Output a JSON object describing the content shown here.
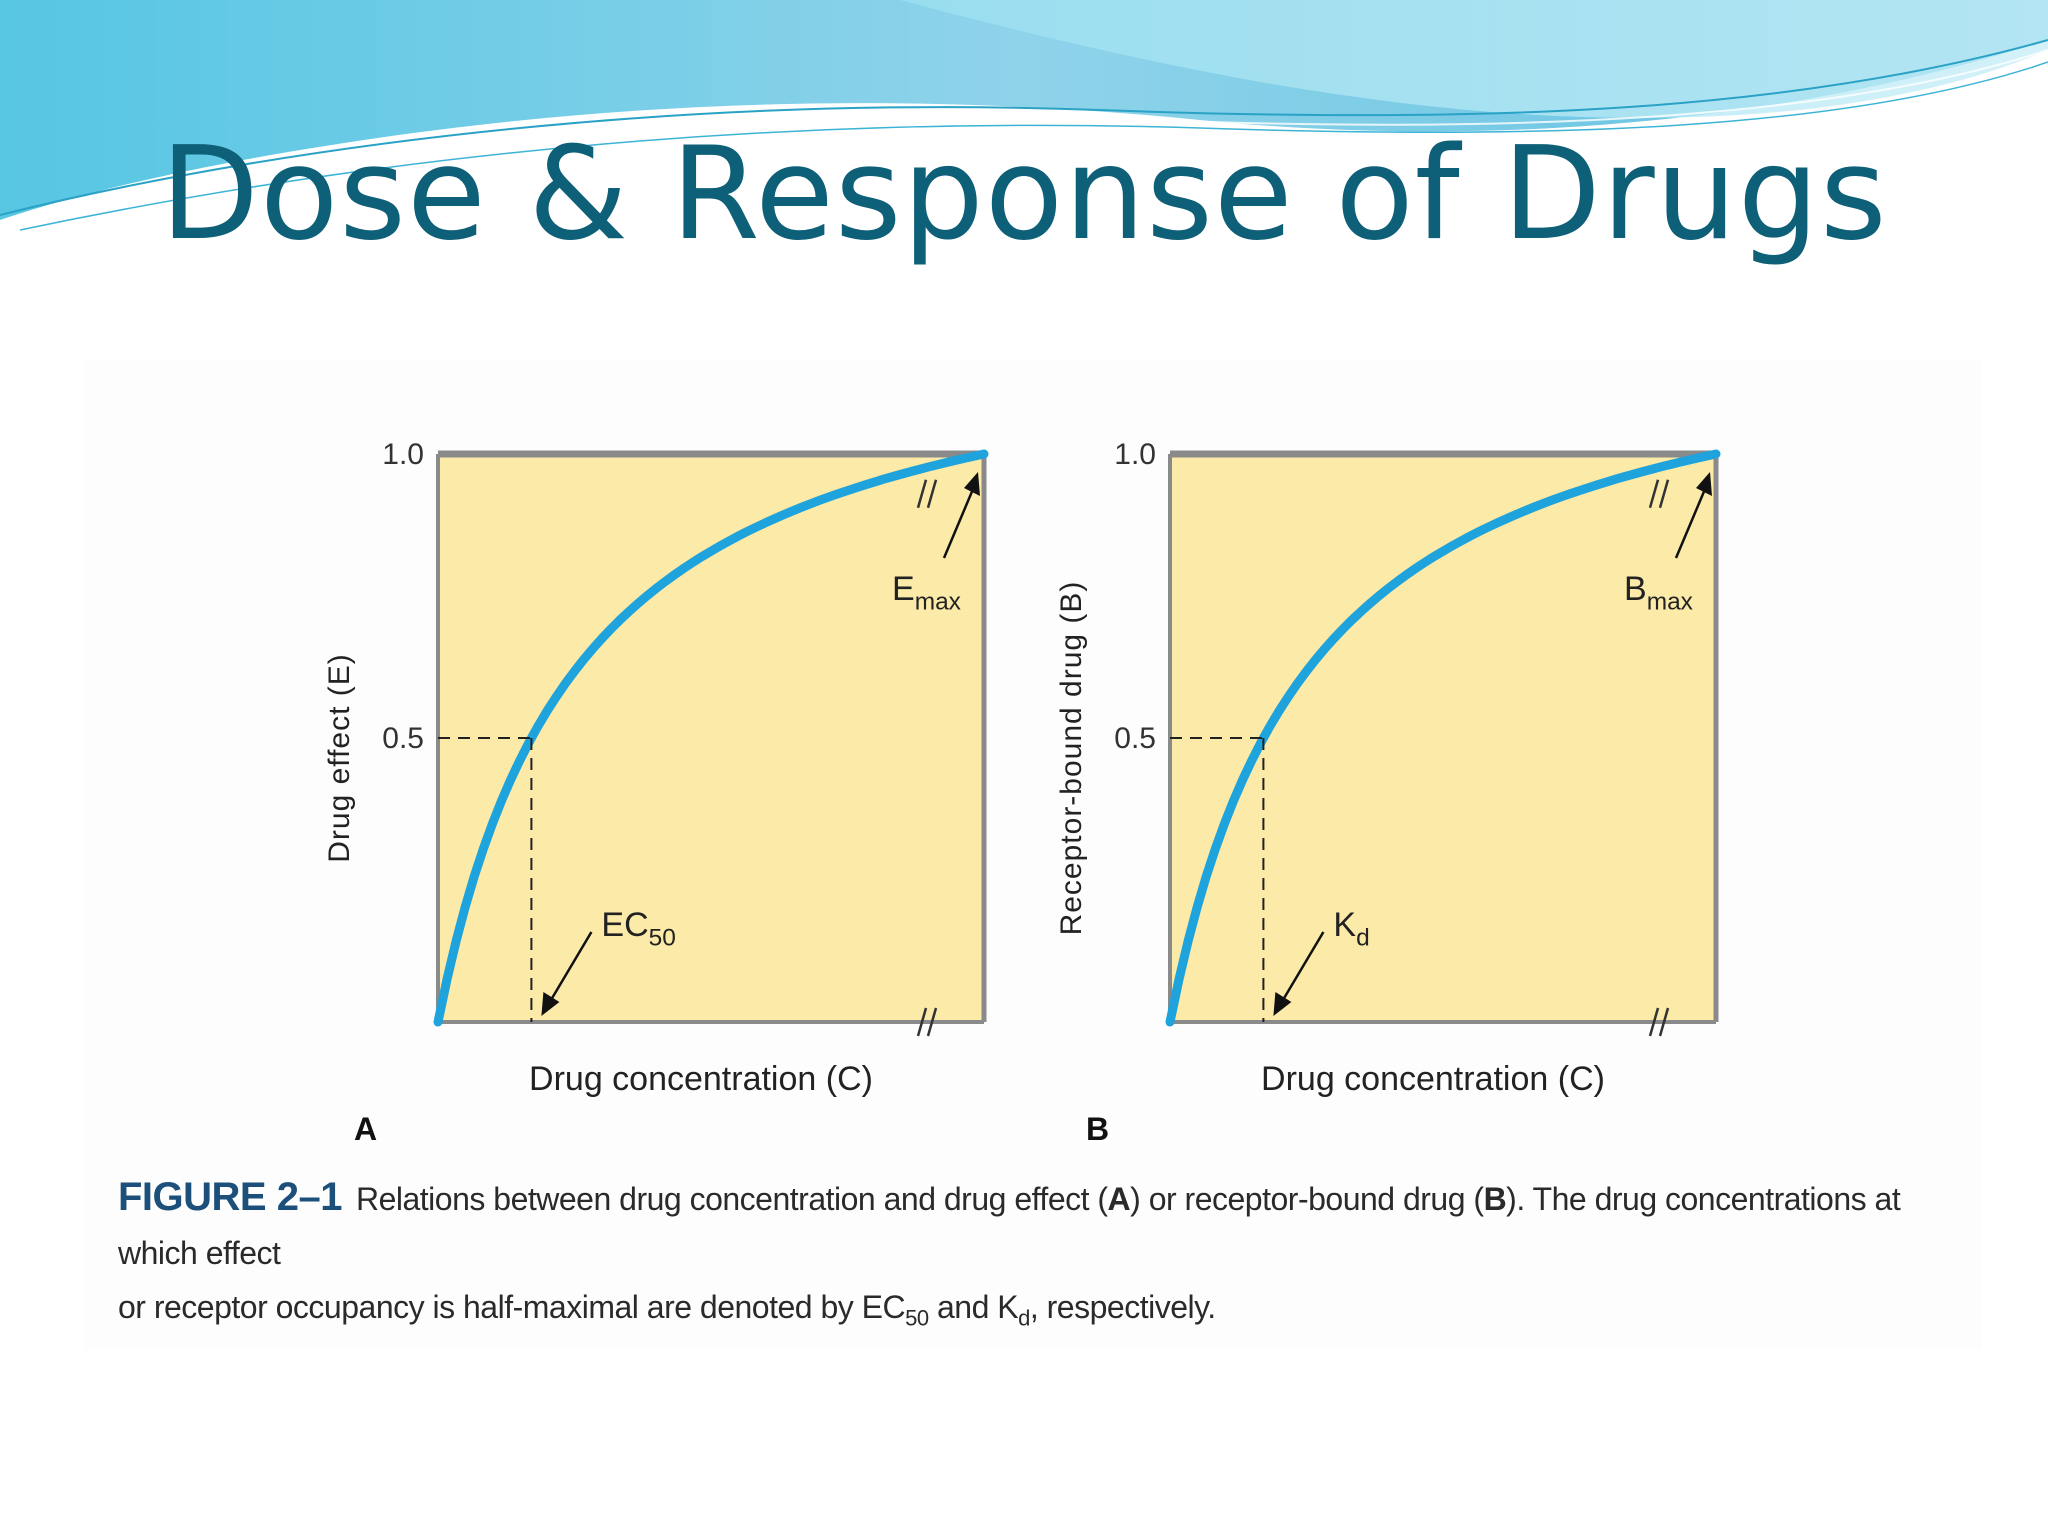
{
  "slide": {
    "title": "Dose & Response of Drugs"
  },
  "colors": {
    "title": "#0e5f78",
    "plot_background": "#fbeaa8",
    "curve": "#1fa3dc",
    "axis": "#8a8a8a",
    "caption_label": "#1c4f7a"
  },
  "caption": {
    "label": "FIGURE 2–1",
    "line1_a": "Relations between drug concentration and drug effect (",
    "panel_a": "A",
    "line1_b": ") or receptor-bound drug (",
    "panel_b": "B",
    "line1_c": "). The drug concentrations at which effect",
    "line2_a": "or receptor occupancy is half-maximal are denoted by EC",
    "ec_sub": "50",
    "line2_b": " and K",
    "kd_sub": "d",
    "line2_c": ", respectively."
  },
  "chart_data": [
    {
      "type": "line",
      "panel_label": "A",
      "xlabel": "Drug concentration (C)",
      "ylabel": "Drug effect (E)",
      "ylim": [
        0,
        1.0
      ],
      "yticks": [
        "1.0",
        "0.5"
      ],
      "grid": false,
      "axis_break": "//",
      "curve": {
        "formula": "E = C / (C + EC50)",
        "half_max_x_fraction": 0.26,
        "y_at_right_edge": 1.0
      },
      "half_max": {
        "y": 0.5,
        "label": "EC",
        "label_sub": "50"
      },
      "max_label": {
        "text": "E",
        "sub": "max",
        "y": 1.0
      }
    },
    {
      "type": "line",
      "panel_label": "B",
      "xlabel": "Drug concentration (C)",
      "ylabel": "Receptor-bound drug (B)",
      "ylim": [
        0,
        1.0
      ],
      "yticks": [
        "1.0",
        "0.5"
      ],
      "grid": false,
      "axis_break": "//",
      "curve": {
        "formula": "B = C / (C + Kd)",
        "half_max_x_fraction": 0.26,
        "y_at_right_edge": 1.0
      },
      "half_max": {
        "y": 0.5,
        "label": "K",
        "label_sub": "d"
      },
      "max_label": {
        "text": "B",
        "sub": "max",
        "y": 1.0
      }
    }
  ]
}
